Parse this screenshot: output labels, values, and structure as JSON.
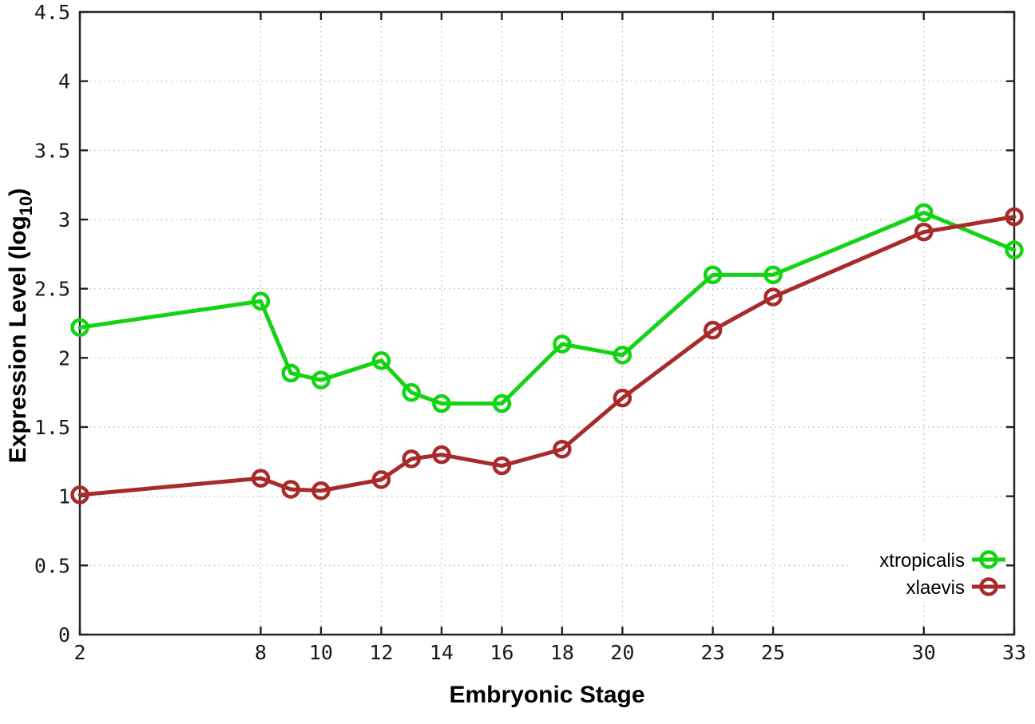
{
  "chart_data": {
    "type": "line",
    "xlabel": "Embryonic Stage",
    "ylabel": "Expression Level (log10)",
    "ylabel_parts": {
      "pre": "Expression Level (log",
      "sub": "10",
      "post": ")"
    },
    "xlim": [
      2,
      33
    ],
    "ylim": [
      0,
      4.5
    ],
    "x_ticks": [
      2,
      8,
      10,
      12,
      14,
      16,
      18,
      20,
      23,
      25,
      30,
      33
    ],
    "y_ticks": [
      0,
      0.5,
      1,
      1.5,
      2,
      2.5,
      3,
      3.5,
      4,
      4.5
    ],
    "y_tick_labels": [
      "0",
      "0.5",
      "1",
      "1.5",
      "2",
      "2.5",
      "3",
      "3.5",
      "4",
      "4.5"
    ],
    "grid": true,
    "grid_color": "#b3b3b3",
    "axis_color": "#222222",
    "legend_position": "bottom-right",
    "x": [
      2,
      8,
      9,
      10,
      12,
      13,
      14,
      16,
      18,
      20,
      23,
      25,
      30,
      33
    ],
    "series": [
      {
        "name": "xtropicalis",
        "color": "#12d412",
        "marker": "open-circle",
        "values": [
          2.22,
          2.41,
          1.89,
          1.84,
          1.98,
          1.75,
          1.67,
          1.67,
          2.1,
          2.02,
          2.6,
          2.6,
          3.05,
          2.78
        ]
      },
      {
        "name": "xlaevis",
        "color": "#a82a2a",
        "marker": "open-circle",
        "values": [
          1.01,
          1.13,
          1.05,
          1.04,
          1.12,
          1.27,
          1.3,
          1.22,
          1.34,
          1.71,
          2.2,
          2.44,
          2.91,
          3.02
        ]
      }
    ]
  }
}
